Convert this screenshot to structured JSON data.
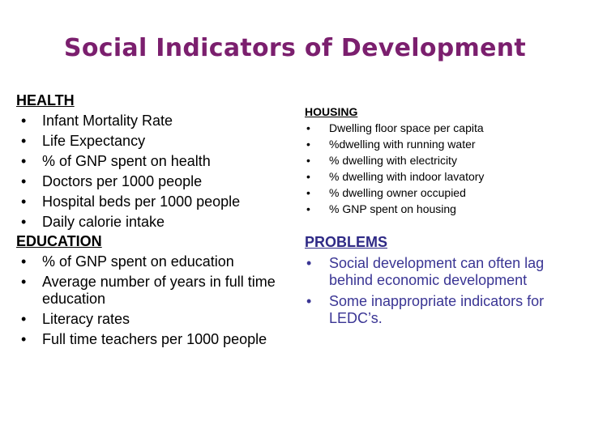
{
  "title": "Social Indicators of Development",
  "health": {
    "heading": "HEALTH",
    "items": [
      "Infant Mortality Rate",
      "Life Expectancy",
      "% of GNP spent on health",
      "Doctors per 1000 people",
      "Hospital beds per 1000 people",
      "Daily calorie intake"
    ]
  },
  "education": {
    "heading": "EDUCATION",
    "items": [
      "% of GNP spent on education",
      "Average number of years in full time education",
      "Literacy rates",
      "Full time teachers per 1000 people"
    ]
  },
  "housing": {
    "heading": "HOUSING",
    "items": [
      "Dwelling floor space per capita",
      "%dwelling with running water",
      "% dwelling with electricity",
      "% dwelling with indoor lavatory",
      "% dwelling owner occupied",
      "% GNP spent on housing"
    ]
  },
  "problems": {
    "heading": "PROBLEMS",
    "items": [
      "Social development can often lag behind economic development",
      "Some inappropriate indicators for LEDC’s."
    ]
  },
  "colors": {
    "title": "#7b1f6e",
    "problems": "#3a3594"
  }
}
